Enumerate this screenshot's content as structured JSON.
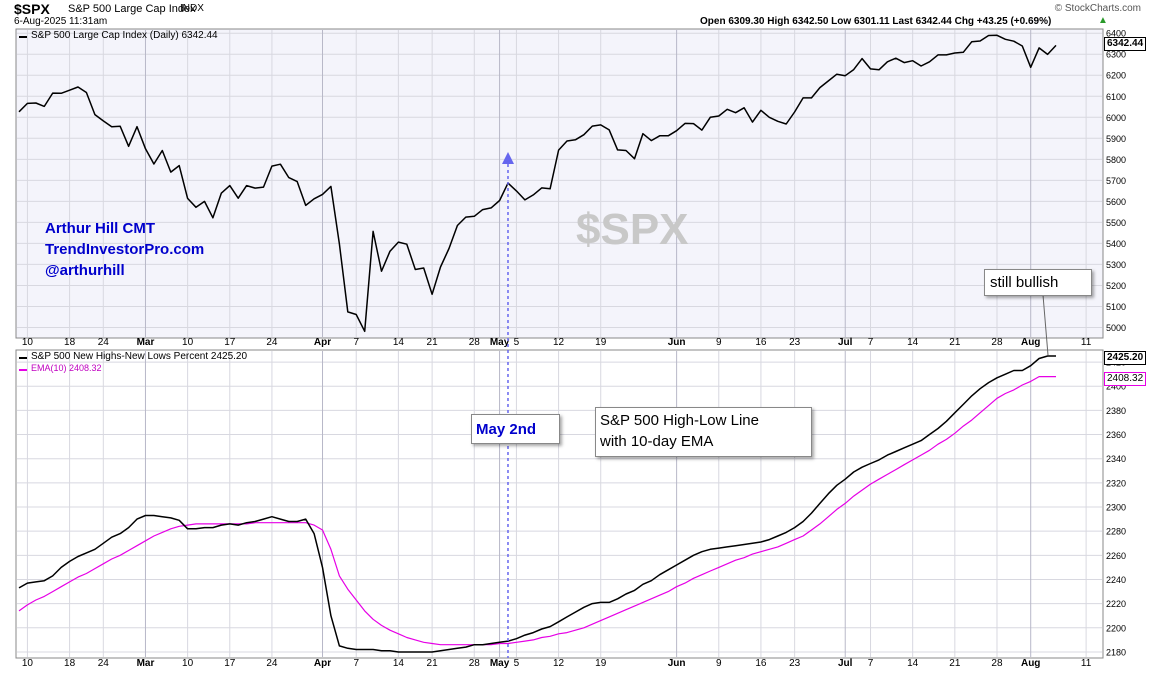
{
  "header": {
    "symbol": "$SPX",
    "name": "S&P 500 Large Cap Index",
    "exchange": "INDX",
    "datetime": "6-Aug-2025 11:31am",
    "watermark": "© StockCharts.com",
    "quote": "Open 6309.30   High 6342.50   Low 6301.11   Last 6342.44   Chg +43.25 (+0.69%)",
    "quote_arrow": "▲"
  },
  "annotations": {
    "author_line1": "Arthur Hill CMT",
    "author_line2": "TrendInvestorPro.com",
    "author_line3": "@arthurhill",
    "bg_symbol": "$SPX",
    "still_bullish": "still bullish",
    "may2": "May 2nd",
    "hl_line1": "S&P 500 High-Low Line",
    "hl_line2": "with 10-day EMA"
  },
  "colors": {
    "price_line": "#000000",
    "hl_line": "#000000",
    "ema_line": "#e600e6",
    "annotation_blue": "#0000cc",
    "marker_blue": "#6666ee",
    "panel_bg": "#f4f4fb",
    "grid": "#d8d8e0"
  },
  "chart_data": [
    {
      "type": "line",
      "title": "S&P 500 Large Cap Index (Daily) 6342.44",
      "last_value_label": "6342.44",
      "x": [
        "Feb 7",
        "Feb 10",
        "Feb 11",
        "Feb 12",
        "Feb 13",
        "Feb 14",
        "Feb 18",
        "Feb 19",
        "Feb 20",
        "Feb 21",
        "Feb 24",
        "Feb 25",
        "Feb 26",
        "Feb 27",
        "Feb 28",
        "Mar 3",
        "Mar 4",
        "Mar 5",
        "Mar 6",
        "Mar 7",
        "Mar 10",
        "Mar 11",
        "Mar 12",
        "Mar 13",
        "Mar 14",
        "Mar 17",
        "Mar 18",
        "Mar 19",
        "Mar 20",
        "Mar 21",
        "Mar 24",
        "Mar 25",
        "Mar 26",
        "Mar 27",
        "Mar 28",
        "Mar 31",
        "Apr 1",
        "Apr 2",
        "Apr 3",
        "Apr 4",
        "Apr 7",
        "Apr 8",
        "Apr 9",
        "Apr 10",
        "Apr 11",
        "Apr 14",
        "Apr 15",
        "Apr 16",
        "Apr 17",
        "Apr 21",
        "Apr 22",
        "Apr 23",
        "Apr 24",
        "Apr 25",
        "Apr 28",
        "Apr 29",
        "Apr 30",
        "May 1",
        "May 2",
        "May 5",
        "May 6",
        "May 7",
        "May 8",
        "May 9",
        "May 12",
        "May 13",
        "May 14",
        "May 15",
        "May 16",
        "May 19",
        "May 20",
        "May 21",
        "May 22",
        "May 23",
        "May 27",
        "May 28",
        "May 29",
        "May 30",
        "Jun 2",
        "Jun 3",
        "Jun 4",
        "Jun 5",
        "Jun 6",
        "Jun 9",
        "Jun 10",
        "Jun 11",
        "Jun 12",
        "Jun 13",
        "Jun 16",
        "Jun 17",
        "Jun 18",
        "Jun 20",
        "Jun 23",
        "Jun 24",
        "Jun 25",
        "Jun 26",
        "Jun 27",
        "Jun 30",
        "Jul 1",
        "Jul 2",
        "Jul 3",
        "Jul 7",
        "Jul 8",
        "Jul 9",
        "Jul 10",
        "Jul 11",
        "Jul 14",
        "Jul 15",
        "Jul 16",
        "Jul 17",
        "Jul 18",
        "Jul 21",
        "Jul 22",
        "Jul 23",
        "Jul 24",
        "Jul 25",
        "Jul 28",
        "Jul 29",
        "Jul 30",
        "Jul 31",
        "Aug 1",
        "Aug 4",
        "Aug 5",
        "Aug 6"
      ],
      "series": [
        {
          "values": [
            6026,
            6066,
            6068,
            6052,
            6115,
            6114,
            6129,
            6144,
            6118,
            6013,
            5983,
            5955,
            5957,
            5862,
            5955,
            5850,
            5778,
            5842,
            5739,
            5770,
            5614,
            5572,
            5600,
            5522,
            5639,
            5675,
            5615,
            5675,
            5663,
            5668,
            5768,
            5777,
            5713,
            5694,
            5581,
            5612,
            5633,
            5671,
            5397,
            5074,
            5062,
            4982,
            5457,
            5268,
            5363,
            5406,
            5396,
            5276,
            5283,
            5158,
            5288,
            5376,
            5485,
            5525,
            5529,
            5561,
            5569,
            5604,
            5687,
            5650,
            5607,
            5631,
            5664,
            5660,
            5844,
            5887,
            5893,
            5917,
            5958,
            5964,
            5940,
            5845,
            5842,
            5803,
            5922,
            5889,
            5912,
            5912,
            5936,
            5971,
            5970,
            5939,
            6000,
            6006,
            6038,
            6022,
            6045,
            5977,
            6033,
            6000,
            5981,
            5968,
            6025,
            6092,
            6092,
            6141,
            6173,
            6205,
            6198,
            6227,
            6279,
            6230,
            6226,
            6264,
            6281,
            6260,
            6269,
            6244,
            6264,
            6297,
            6297,
            6306,
            6309,
            6359,
            6363,
            6389,
            6390,
            6371,
            6362,
            6339,
            6238,
            6330,
            6299,
            6342
          ]
        }
      ],
      "ylim": [
        4950,
        6420
      ],
      "y_ticks": [
        "5000",
        "5100",
        "5200",
        "5300",
        "5400",
        "5500",
        "5600",
        "5700",
        "5800",
        "5900",
        "6000",
        "6100",
        "6200",
        "6300",
        "6400"
      ],
      "x_tick_labels": [
        "10",
        "18",
        "24",
        "Mar",
        "10",
        "17",
        "24",
        "Apr",
        "7",
        "14",
        "21",
        "28",
        "May",
        "5",
        "12",
        "19",
        "Jun",
        "9",
        "16",
        "23",
        "Jul",
        "7",
        "14",
        "21",
        "28",
        "Aug",
        "11"
      ],
      "x_tick_dates": [
        "Feb 10",
        "Feb 18",
        "Feb 24",
        "Mar 3",
        "Mar 10",
        "Mar 17",
        "Mar 24",
        "Apr 1",
        "Apr 7",
        "Apr 14",
        "Apr 21",
        "Apr 28",
        "May 1",
        "May 5",
        "May 12",
        "May 19",
        "Jun 2",
        "Jun 9",
        "Jun 16",
        "Jun 23",
        "Jul 1",
        "Jul 7",
        "Jul 14",
        "Jul 21",
        "Jul 28",
        "Aug 1",
        "Aug 11"
      ],
      "grid": true
    },
    {
      "type": "line",
      "title": "S&P 500 New Highs-New Lows Percent 2425.20",
      "x": [
        "Feb 7",
        "Feb 10",
        "Feb 11",
        "Feb 12",
        "Feb 13",
        "Feb 14",
        "Feb 18",
        "Feb 19",
        "Feb 20",
        "Feb 21",
        "Feb 24",
        "Feb 25",
        "Feb 26",
        "Feb 27",
        "Feb 28",
        "Mar 3",
        "Mar 4",
        "Mar 5",
        "Mar 6",
        "Mar 7",
        "Mar 10",
        "Mar 11",
        "Mar 12",
        "Mar 13",
        "Mar 14",
        "Mar 17",
        "Mar 18",
        "Mar 19",
        "Mar 20",
        "Mar 21",
        "Mar 24",
        "Mar 25",
        "Mar 26",
        "Mar 27",
        "Mar 28",
        "Mar 31",
        "Apr 1",
        "Apr 2",
        "Apr 3",
        "Apr 4",
        "Apr 7",
        "Apr 8",
        "Apr 9",
        "Apr 10",
        "Apr 11",
        "Apr 14",
        "Apr 15",
        "Apr 16",
        "Apr 17",
        "Apr 21",
        "Apr 22",
        "Apr 23",
        "Apr 24",
        "Apr 25",
        "Apr 28",
        "Apr 29",
        "Apr 30",
        "May 1",
        "May 2",
        "May 5",
        "May 6",
        "May 7",
        "May 8",
        "May 9",
        "May 12",
        "May 13",
        "May 14",
        "May 15",
        "May 16",
        "May 19",
        "May 20",
        "May 21",
        "May 22",
        "May 23",
        "May 27",
        "May 28",
        "May 29",
        "May 30",
        "Jun 2",
        "Jun 3",
        "Jun 4",
        "Jun 5",
        "Jun 6",
        "Jun 9",
        "Jun 10",
        "Jun 11",
        "Jun 12",
        "Jun 13",
        "Jun 16",
        "Jun 17",
        "Jun 18",
        "Jun 20",
        "Jun 23",
        "Jun 24",
        "Jun 25",
        "Jun 26",
        "Jun 27",
        "Jun 30",
        "Jul 1",
        "Jul 2",
        "Jul 3",
        "Jul 7",
        "Jul 8",
        "Jul 9",
        "Jul 10",
        "Jul 11",
        "Jul 14",
        "Jul 15",
        "Jul 16",
        "Jul 17",
        "Jul 18",
        "Jul 21",
        "Jul 22",
        "Jul 23",
        "Jul 24",
        "Jul 25",
        "Jul 28",
        "Jul 29",
        "Jul 30",
        "Jul 31",
        "Aug 1",
        "Aug 4",
        "Aug 5",
        "Aug 6"
      ],
      "series": [
        {
          "name": "S&P 500 New Highs-New Lows Percent",
          "last_value_label": "2425.20",
          "values": [
            2233,
            2237,
            2238,
            2239,
            2243,
            2250,
            2255,
            2259,
            2262,
            2265,
            2270,
            2275,
            2278,
            2283,
            2290,
            2293,
            2293,
            2292,
            2291,
            2289,
            2282,
            2282,
            2283,
            2283,
            2285,
            2286,
            2285,
            2287,
            2288,
            2290,
            2292,
            2290,
            2288,
            2288,
            2290,
            2278,
            2250,
            2210,
            2185,
            2183,
            2182,
            2182,
            2182,
            2181,
            2181,
            2180,
            2180,
            2180,
            2180,
            2180,
            2181,
            2182,
            2183,
            2184,
            2186,
            2186,
            2187,
            2188,
            2189,
            2191,
            2194,
            2196,
            2199,
            2201,
            2205,
            2209,
            2213,
            2217,
            2220,
            2221,
            2221,
            2224,
            2228,
            2231,
            2236,
            2239,
            2244,
            2248,
            2252,
            2256,
            2260,
            2263,
            2265,
            2266,
            2267,
            2268,
            2269,
            2270,
            2271,
            2273,
            2276,
            2279,
            2283,
            2288,
            2295,
            2303,
            2311,
            2318,
            2323,
            2329,
            2333,
            2336,
            2339,
            2343,
            2346,
            2349,
            2352,
            2355,
            2360,
            2365,
            2371,
            2378,
            2385,
            2392,
            2398,
            2403,
            2407,
            2410,
            2413,
            2413,
            2417,
            2423,
            2425,
            2425
          ]
        },
        {
          "name": "EMA(10) 2408.32",
          "last_value_label": "2408.32",
          "values": [
            2214,
            2219,
            2223,
            2226,
            2230,
            2234,
            2238,
            2242,
            2245,
            2249,
            2253,
            2257,
            2260,
            2264,
            2268,
            2272,
            2276,
            2279,
            2282,
            2284,
            2285,
            2286,
            2286,
            2286,
            2286,
            2286,
            2286,
            2286,
            2287,
            2287,
            2287,
            2287,
            2287,
            2287,
            2287,
            2285,
            2281,
            2265,
            2243,
            2232,
            2223,
            2214,
            2207,
            2202,
            2198,
            2195,
            2192,
            2190,
            2188,
            2187,
            2186,
            2186,
            2186,
            2186,
            2186,
            2186,
            2186,
            2187,
            2187,
            2188,
            2189,
            2190,
            2192,
            2193,
            2195,
            2196,
            2198,
            2200,
            2203,
            2206,
            2209,
            2212,
            2215,
            2218,
            2221,
            2224,
            2227,
            2230,
            2234,
            2237,
            2241,
            2244,
            2247,
            2250,
            2253,
            2256,
            2258,
            2261,
            2263,
            2265,
            2267,
            2270,
            2273,
            2276,
            2281,
            2286,
            2292,
            2298,
            2303,
            2309,
            2314,
            2319,
            2323,
            2327,
            2331,
            2335,
            2339,
            2343,
            2347,
            2352,
            2356,
            2361,
            2367,
            2372,
            2378,
            2384,
            2390,
            2394,
            2397,
            2401,
            2404,
            2408,
            2408,
            2408
          ]
        }
      ],
      "ylim": [
        2175,
        2430
      ],
      "y_ticks": [
        "2180",
        "2200",
        "2220",
        "2240",
        "2260",
        "2280",
        "2300",
        "2320",
        "2340",
        "2360",
        "2380",
        "2400",
        "2420"
      ],
      "x_tick_labels": [
        "10",
        "18",
        "24",
        "Mar",
        "10",
        "17",
        "24",
        "Apr",
        "7",
        "14",
        "21",
        "28",
        "May",
        "5",
        "12",
        "19",
        "Jun",
        "9",
        "16",
        "23",
        "Jul",
        "7",
        "14",
        "21",
        "28",
        "Aug",
        "11"
      ],
      "grid": true
    }
  ]
}
